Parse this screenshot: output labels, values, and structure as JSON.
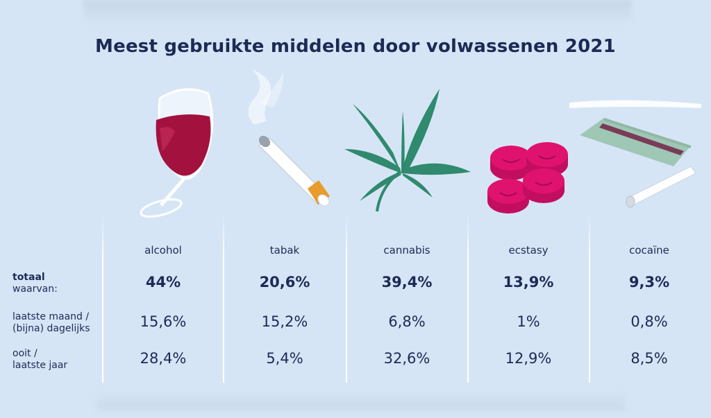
{
  "title": "Meest gebruikte middelen door volwassenen 2021",
  "row_labels": {
    "total_line1": "totaal",
    "total_line2": "waarvan:",
    "row1_line1": "laatste maand /",
    "row1_line2": "(bijna) dagelijks",
    "row2_line1": "ooit /",
    "row2_line2": "laatste jaar"
  },
  "columns": [
    {
      "name": "alcohol",
      "total": "44%",
      "row1": "15,6%",
      "row2": "28,4%",
      "icon": "wine-glass-icon"
    },
    {
      "name": "tabak",
      "total": "20,6%",
      "row1": "15,2%",
      "row2": "5,4%",
      "icon": "cigarette-icon"
    },
    {
      "name": "cannabis",
      "total": "39,4%",
      "row1": "6,8%",
      "row2": "32,6%",
      "icon": "cannabis-leaf-icon"
    },
    {
      "name": "ecstasy",
      "total": "13,9%",
      "row1": "1%",
      "row2": "12,9%",
      "icon": "ecstasy-pills-icon"
    },
    {
      "name": "cocaïne",
      "total": "9,3%",
      "row1": "0,8%",
      "row2": "8,5%",
      "icon": "cocaine-card-icon"
    }
  ],
  "colors": {
    "background": "#d6e5f5",
    "text": "#1c2a55",
    "wine": "#a3123e",
    "leaf": "#2f8a6e",
    "pill": "#e0126f",
    "filter": "#e79c2c"
  }
}
